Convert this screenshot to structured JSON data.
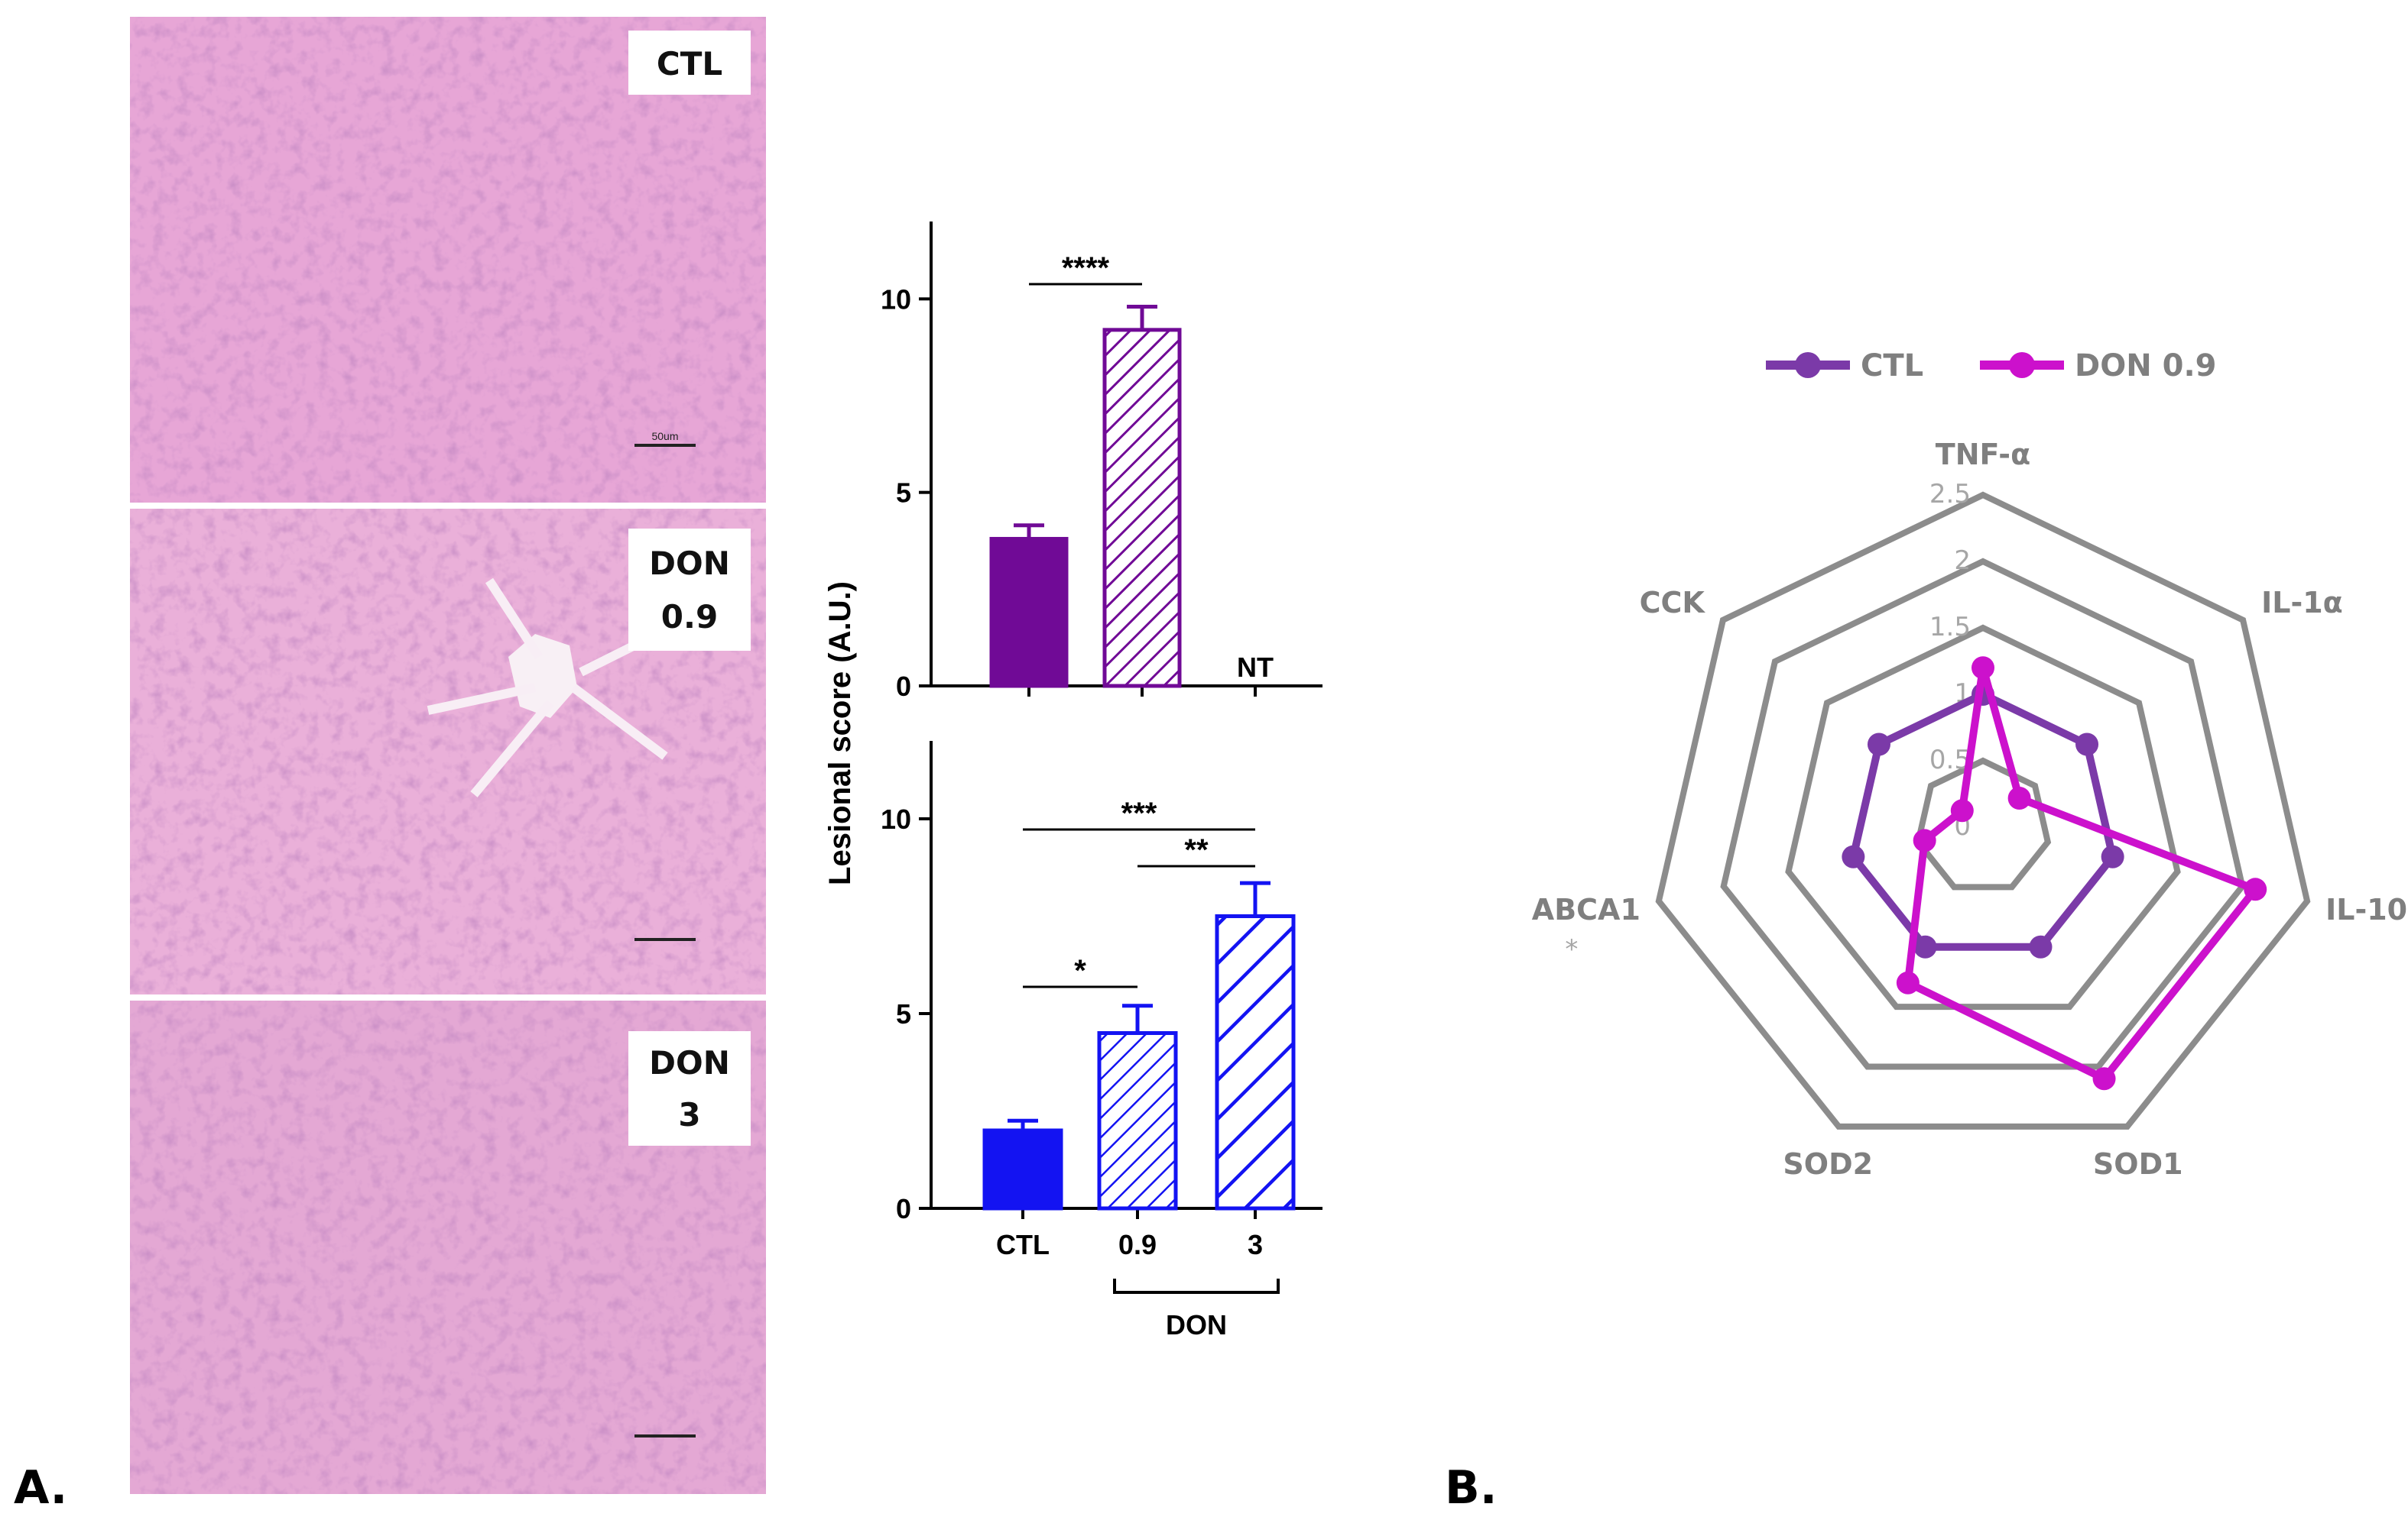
{
  "panel_labels": {
    "a": "A.",
    "b": "B."
  },
  "histology": {
    "labels": [
      {
        "lines": [
          "CTL"
        ]
      },
      {
        "lines": [
          "DON",
          "0.9"
        ]
      },
      {
        "lines": [
          "DON",
          "3"
        ]
      }
    ],
    "scale_bar": "50um"
  },
  "colors": {
    "ctl_purple": "#700a96",
    "don_blue": "#1313f2",
    "radar_ctl": "#7b3aa8",
    "radar_don": "#cc11cc",
    "radar_grid": "#8c8c8c",
    "tissue_base": "#e7a6d6"
  },
  "chart_data": [
    {
      "type": "bar",
      "panel": "A-top",
      "ylabel": "Lesional score (A.U.)",
      "categories": [
        "CTL",
        "0.9",
        "3"
      ],
      "values": [
        3.8,
        9.2,
        null
      ],
      "errors": [
        0.35,
        0.6,
        null
      ],
      "fills": [
        "solid",
        "hatched",
        "none"
      ],
      "na_label": "NT",
      "ylim": [
        0,
        12
      ],
      "yticks": [
        0,
        5,
        10
      ],
      "significance": [
        {
          "from": 0,
          "to": 1,
          "label": "****"
        }
      ],
      "color": "#700a96"
    },
    {
      "type": "bar",
      "panel": "A-bottom",
      "ylabel": "Lesional score (A.U.)",
      "categories": [
        "CTL",
        "0.9",
        "3"
      ],
      "values": [
        2.0,
        4.5,
        7.5
      ],
      "errors": [
        0.25,
        0.7,
        0.85
      ],
      "fills": [
        "solid",
        "hatched",
        "hatched-wide"
      ],
      "ylim": [
        0,
        12
      ],
      "yticks": [
        0,
        5,
        10
      ],
      "group_bracket": {
        "from": 1,
        "to": 2,
        "label": "DON"
      },
      "significance": [
        {
          "from": 0,
          "to": 2,
          "label": "***"
        },
        {
          "from": 1,
          "to": 2,
          "label": "**"
        },
        {
          "from": 0,
          "to": 1,
          "label": "*"
        }
      ],
      "color": "#1313f2"
    },
    {
      "type": "radar",
      "panel": "B",
      "axes": [
        "TNF-α",
        "IL-1α",
        "IL-10",
        "SOD1",
        "SOD2",
        "ABCA1",
        "CCK"
      ],
      "axis_marks": [
        "",
        "",
        "",
        "",
        "",
        "*",
        ""
      ],
      "ticks": [
        "0",
        "0.5",
        "1",
        "1.5",
        "2",
        "2.5"
      ],
      "rmax": 2.5,
      "series": [
        {
          "name": "CTL",
          "values": [
            1.0,
            1.0,
            1.0,
            1.0,
            1.0,
            1.0,
            1.0
          ],
          "color": "#7b3aa8"
        },
        {
          "name": "DON 0.9",
          "values": [
            1.2,
            0.35,
            2.1,
            2.1,
            1.3,
            0.45,
            0.2
          ],
          "color": "#cc11cc"
        }
      ],
      "legend_position": "top"
    }
  ]
}
